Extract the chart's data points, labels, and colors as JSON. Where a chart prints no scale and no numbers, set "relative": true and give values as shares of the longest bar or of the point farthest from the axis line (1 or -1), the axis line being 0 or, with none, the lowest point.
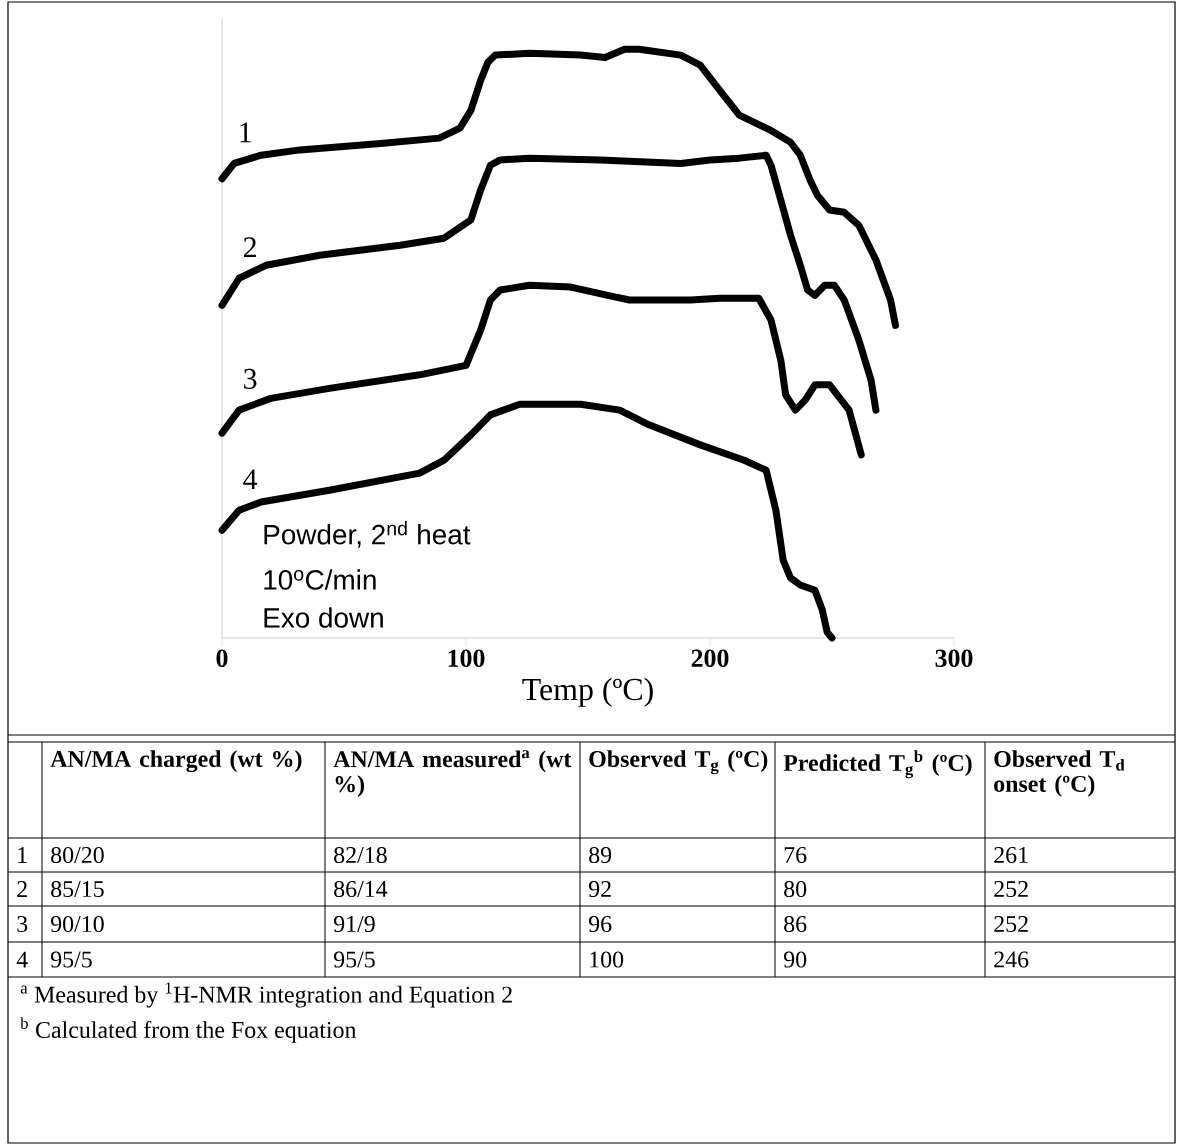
{
  "chart_data": {
    "type": "line",
    "relative": true,
    "xlabel": "Temp (ºC)",
    "xlim": [
      0,
      300
    ],
    "xticks": [
      0,
      100,
      200,
      300
    ],
    "marker": "none",
    "line_style": "solid",
    "series": [
      {
        "name": "1",
        "color": "#000000",
        "x": [
          0,
          5,
          16,
          32,
          65,
          89,
          97.5,
          102,
          106,
          109,
          112,
          126,
          147,
          157,
          165,
          171,
          188,
          196,
          204,
          212,
          225,
          233,
          237,
          241,
          244,
          249,
          255,
          261,
          268,
          274,
          276
        ],
        "values": [
          0.78,
          0.806,
          0.82,
          0.829,
          0.84,
          0.849,
          0.866,
          0.896,
          0.947,
          0.978,
          0.99,
          0.993,
          0.99,
          0.986,
          1.0,
          1.0,
          0.99,
          0.973,
          0.93,
          0.888,
          0.862,
          0.842,
          0.82,
          0.778,
          0.752,
          0.727,
          0.723,
          0.701,
          0.642,
          0.574,
          0.531
        ]
      },
      {
        "name": "2",
        "color": "#000000",
        "x": [
          0,
          7,
          18,
          40,
          73,
          91,
          102,
          106,
          110,
          114,
          126,
          155,
          188,
          200,
          212,
          223,
          225,
          229,
          233,
          237,
          240,
          243,
          247,
          251,
          255,
          261,
          266,
          268
        ],
        "values": [
          0.565,
          0.611,
          0.633,
          0.65,
          0.667,
          0.679,
          0.71,
          0.761,
          0.803,
          0.812,
          0.815,
          0.812,
          0.806,
          0.812,
          0.815,
          0.82,
          0.803,
          0.744,
          0.684,
          0.633,
          0.591,
          0.582,
          0.599,
          0.599,
          0.574,
          0.506,
          0.438,
          0.387
        ]
      },
      {
        "name": "3",
        "color": "#000000",
        "x": [
          0,
          7,
          20,
          44,
          81,
          100,
          106,
          110,
          114,
          126,
          143,
          159,
          167,
          192,
          204,
          220,
          225,
          229,
          231,
          235,
          239,
          243,
          249,
          257,
          262
        ],
        "values": [
          0.348,
          0.387,
          0.407,
          0.424,
          0.447,
          0.463,
          0.523,
          0.574,
          0.591,
          0.599,
          0.596,
          0.581,
          0.574,
          0.574,
          0.577,
          0.577,
          0.54,
          0.472,
          0.413,
          0.387,
          0.404,
          0.43,
          0.43,
          0.387,
          0.311
        ]
      },
      {
        "name": "4",
        "color": "#000000",
        "x": [
          0,
          7,
          16,
          44,
          81,
          91,
          102,
          110,
          122,
          147,
          163,
          175,
          196,
          214,
          223,
          227,
          230,
          233,
          237,
          243,
          246,
          248,
          250
        ],
        "values": [
          0.183,
          0.217,
          0.231,
          0.251,
          0.28,
          0.302,
          0.345,
          0.379,
          0.397,
          0.397,
          0.387,
          0.362,
          0.328,
          0.302,
          0.285,
          0.217,
          0.132,
          0.102,
          0.09,
          0.081,
          0.048,
          0.01,
          0
        ]
      }
    ],
    "annotations": [
      "Powder, 2$^{nd}$ heat",
      "10$^{o}$C/min",
      "Exo down",
      "AN/MA charged (wt %)",
      "AN/MA measured$^{a}$ (wt %)",
      "Observed T$_{g}$ (ºC)",
      "Predicted T$_{g}$$^{b}$ (ºC)",
      "Observed T$_{d}$ onset (ºC)",
      "1",
      "80/20",
      "82/18",
      "89",
      "76",
      "261",
      "2",
      "85/15",
      "86/14",
      "92",
      "80",
      "252",
      "3",
      "90/10",
      "91/9",
      "96",
      "86",
      "252",
      "4",
      "95/5",
      "95/5",
      "100",
      "90",
      "246",
      "$^{a}$ Measured by $^{1}$H-NMR integration and Equation 2",
      "$^{b}$ Calculated from the Fox equation"
    ]
  }
}
